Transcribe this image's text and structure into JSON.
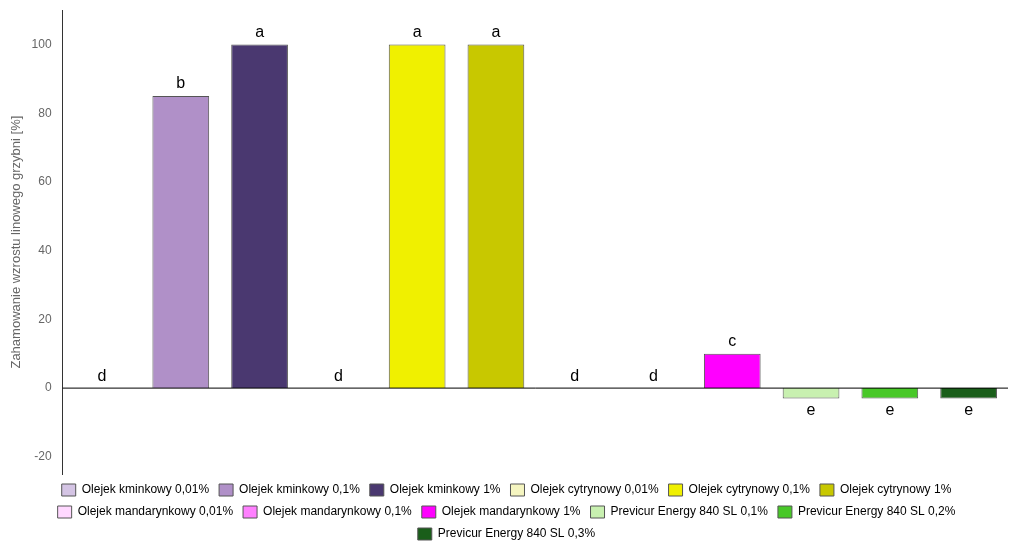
{
  "chart_data": {
    "type": "bar",
    "y_label": "Zahamowanie wzrostu linowego grzybni [%]",
    "categories": [
      "Olejek kminkowy 0,01%",
      "Olejek kminkowy 0,1%",
      "Olejek kminkowy 1%",
      "Olejek cytrynowy 0,01%",
      "Olejek cytrynowy 0,1%",
      "Olejek cytrynowy 1%",
      "Olejek mandarynkowy 0,01%",
      "Olejek mandarynkowy 0,1%",
      "Olejek mandarynkowy 1%",
      "Previcur Energy 840 SL 0,1%",
      "Previcur Energy 840 SL 0,2%",
      "Previcur Energy 840 SL 0,3%"
    ],
    "values": [
      0,
      85,
      100,
      0,
      100,
      100,
      0,
      0,
      10,
      -3,
      -3,
      -3
    ],
    "colors": [
      "#d4c4e4",
      "#b090c8",
      "#4a3870",
      "#f5f5c0",
      "#f0f000",
      "#c8c800",
      "#ffd8ff",
      "#ff80ff",
      "#ff00ff",
      "#c8f0b0",
      "#48c828",
      "#1a5e1a"
    ],
    "annotations": [
      "d",
      "b",
      "a",
      "d",
      "a",
      "a",
      "d",
      "d",
      "c",
      "e",
      "e",
      "e"
    ],
    "ylim": [
      -25,
      110
    ],
    "yticks": [
      -20,
      0,
      20,
      40,
      60,
      80,
      100
    ],
    "grid": false,
    "legend": "bottom",
    "tick_labels": "y"
  }
}
